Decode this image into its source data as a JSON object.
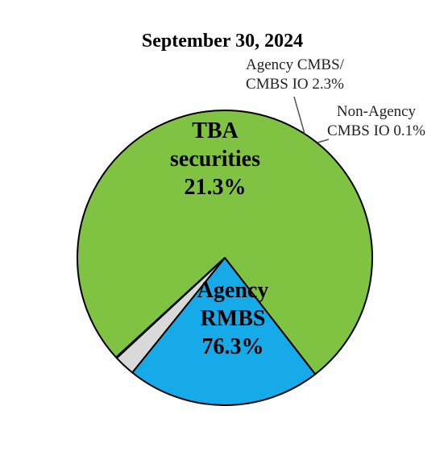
{
  "chart_data": {
    "type": "pie",
    "title": "September 30, 2024",
    "slices": [
      {
        "label_lines": [
          "Agency",
          "RMBS",
          "76.3%"
        ],
        "value": 76.3,
        "color": "#80c242",
        "label_inside": true
      },
      {
        "label_lines": [
          "TBA",
          "securities",
          "21.3%"
        ],
        "value": 21.3,
        "color": "#16aae8",
        "label_inside": true
      },
      {
        "label_lines": [
          "Agency CMBS/",
          "CMBS IO 2.3%"
        ],
        "value": 2.3,
        "color": "#d9d9d9",
        "label_inside": false
      },
      {
        "label_lines": [
          "Non-Agency",
          "CMBS IO 0.1%"
        ],
        "value": 0.1,
        "color": "#1a1a1a",
        "label_inside": false
      }
    ]
  }
}
